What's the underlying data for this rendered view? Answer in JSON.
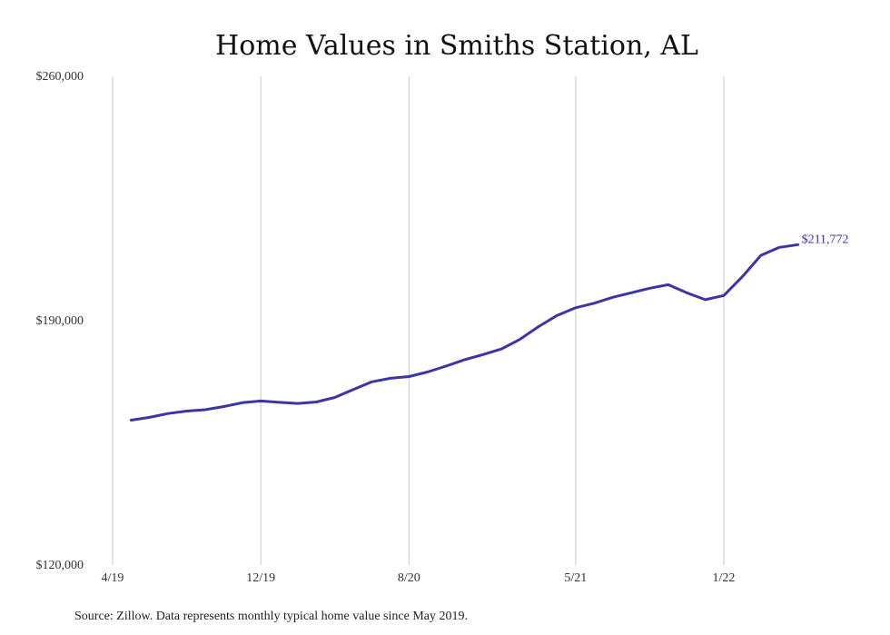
{
  "chart_data": {
    "type": "line",
    "title": "Home Values in Smiths Station, AL",
    "xlabel": "",
    "ylabel": "",
    "x": [
      "2019-05",
      "2019-06",
      "2019-07",
      "2019-08",
      "2019-09",
      "2019-10",
      "2019-11",
      "2019-12",
      "2020-01",
      "2020-02",
      "2020-03",
      "2020-04",
      "2020-05",
      "2020-06",
      "2020-07",
      "2020-08",
      "2020-09",
      "2020-10",
      "2020-11",
      "2020-12",
      "2021-01",
      "2021-02",
      "2021-03",
      "2021-04",
      "2021-05",
      "2021-06",
      "2021-07",
      "2021-08",
      "2021-09",
      "2021-10",
      "2021-11",
      "2021-12",
      "2022-01",
      "2022-02",
      "2022-03",
      "2022-04",
      "2022-05",
      "2022-06"
    ],
    "series": [
      {
        "values": [
          161500,
          162300,
          163400,
          164100,
          164500,
          165400,
          166500,
          167000,
          166600,
          166300,
          166700,
          168000,
          170300,
          172500,
          173500,
          174000,
          175300,
          177000,
          178800,
          180300,
          181900,
          184700,
          188300,
          191500,
          193700,
          195000,
          196700,
          198000,
          199300,
          200300,
          198000,
          196000,
          197200,
          202600,
          208700,
          211000,
          211772,
          null
        ]
      }
    ],
    "series_color": "#3d35a6",
    "end_label": "$211,772",
    "y_tick_labels": [
      "$120,000",
      "$190,000",
      "$260,000"
    ],
    "y_ticks": [
      120000,
      190000,
      260000
    ],
    "ylim": [
      120000,
      260000
    ],
    "x_tick_labels": [
      "4/19",
      "12/19",
      "8/20",
      "5/21",
      "1/22"
    ],
    "x_ticks": [
      "2019-04",
      "2019-12",
      "2020-08",
      "2021-05",
      "2022-01"
    ],
    "grid": "vertical",
    "legend": "none",
    "source_note": "Source: Zillow. Data represents monthly typical home value since May 2019."
  }
}
